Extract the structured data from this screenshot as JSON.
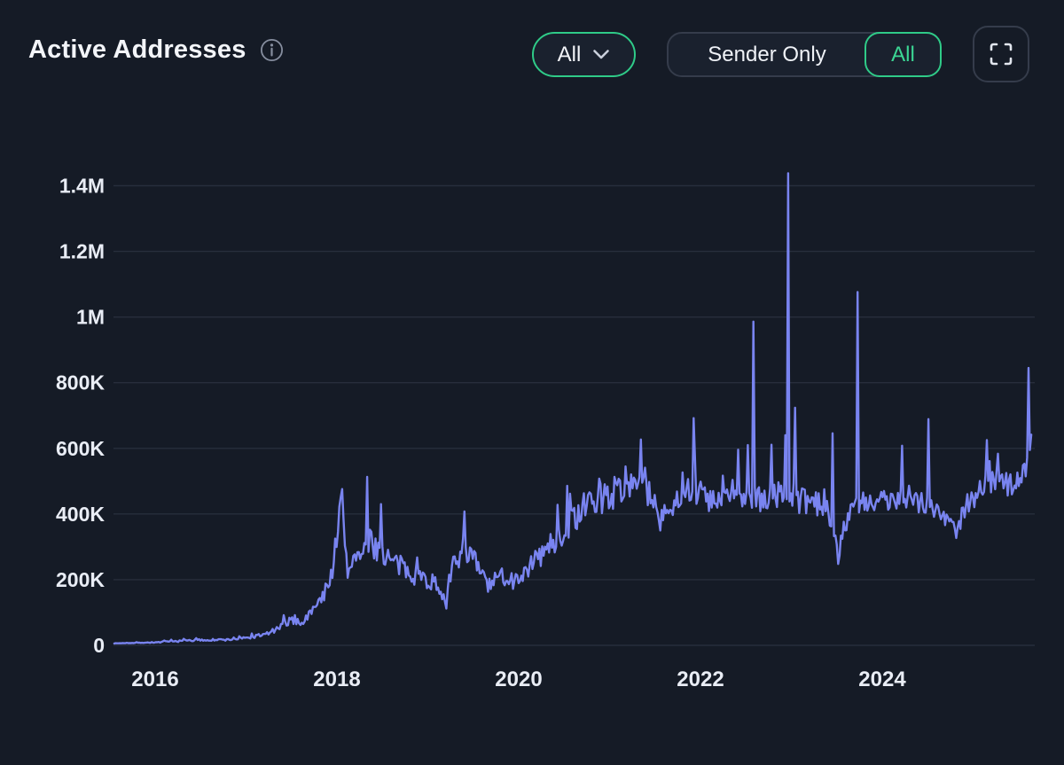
{
  "header": {
    "title": "Active Addresses",
    "range_dropdown": {
      "selected": "All"
    },
    "mode_toggle": {
      "option_sender": "Sender Only",
      "option_all": "All",
      "selected": "All"
    },
    "icons": {
      "info": "circled-i",
      "dropdown_chevron": "chevron-down",
      "fullscreen": "corner-brackets"
    }
  },
  "colors": {
    "background": "#151B26",
    "accent_green": "#2FCB88",
    "accent_green_text": "#3BD694",
    "line": "#7984F0",
    "text_primary": "#F3F5F9",
    "axis_text": "#E9EDF5",
    "grid": "rgba(163,178,212,0.13)",
    "control_border": "#353C4B"
  },
  "chart_data": {
    "type": "line",
    "title": "Active Addresses",
    "series_name": "Active Addresses",
    "xlabel": "",
    "ylabel": "",
    "grid": true,
    "legend": false,
    "line_color": "#7984F0",
    "x_ticks": [
      2016,
      2018,
      2020,
      2022,
      2024
    ],
    "y_tick_labels": [
      "0",
      "200K",
      "400K",
      "600K",
      "800K",
      "1M",
      "1.2M",
      "1.4M"
    ],
    "y_tick_values": [
      0,
      200000,
      400000,
      600000,
      800000,
      1000000,
      1200000,
      1400000
    ],
    "x_range": [
      2015.55,
      2025.64
    ],
    "y_range": [
      0,
      1500000
    ],
    "anchors": [
      [
        2015.55,
        6000
      ],
      [
        2016.0,
        9000
      ],
      [
        2016.2,
        12000
      ],
      [
        2016.5,
        16000
      ],
      [
        2016.8,
        17000
      ],
      [
        2017.0,
        22000
      ],
      [
        2017.2,
        32000
      ],
      [
        2017.35,
        50000
      ],
      [
        2017.5,
        78000
      ],
      [
        2017.62,
        70000
      ],
      [
        2017.75,
        110000
      ],
      [
        2017.85,
        150000
      ],
      [
        2017.95,
        230000
      ],
      [
        2018.05,
        440000
      ],
      [
        2018.12,
        215000
      ],
      [
        2018.2,
        290000
      ],
      [
        2018.28,
        260000
      ],
      [
        2018.35,
        310000
      ],
      [
        2018.45,
        300000
      ],
      [
        2018.6,
        255000
      ],
      [
        2018.78,
        225000
      ],
      [
        2018.95,
        205000
      ],
      [
        2019.1,
        185000
      ],
      [
        2019.2,
        150000
      ],
      [
        2019.3,
        260000
      ],
      [
        2019.42,
        300000
      ],
      [
        2019.55,
        235000
      ],
      [
        2019.69,
        175000
      ],
      [
        2019.8,
        215000
      ],
      [
        2019.95,
        195000
      ],
      [
        2020.1,
        235000
      ],
      [
        2020.3,
        290000
      ],
      [
        2020.45,
        330000
      ],
      [
        2020.6,
        385000
      ],
      [
        2020.75,
        425000
      ],
      [
        2020.9,
        450000
      ],
      [
        2021.05,
        465000
      ],
      [
        2021.2,
        490000
      ],
      [
        2021.35,
        520000
      ],
      [
        2021.5,
        420000
      ],
      [
        2021.62,
        400000
      ],
      [
        2021.78,
        460000
      ],
      [
        2021.92,
        480000
      ],
      [
        2022.05,
        445000
      ],
      [
        2022.2,
        430000
      ],
      [
        2022.35,
        465000
      ],
      [
        2022.5,
        450000
      ],
      [
        2022.65,
        440000
      ],
      [
        2022.8,
        455000
      ],
      [
        2022.95,
        470000
      ],
      [
        2023.1,
        440000
      ],
      [
        2023.25,
        430000
      ],
      [
        2023.35,
        420000
      ],
      [
        2023.45,
        390000
      ],
      [
        2023.52,
        290000
      ],
      [
        2023.62,
        400000
      ],
      [
        2023.75,
        430000
      ],
      [
        2023.9,
        425000
      ],
      [
        2024.05,
        435000
      ],
      [
        2024.2,
        465000
      ],
      [
        2024.35,
        450000
      ],
      [
        2024.5,
        430000
      ],
      [
        2024.65,
        400000
      ],
      [
        2024.81,
        355000
      ],
      [
        2024.95,
        440000
      ],
      [
        2025.1,
        480000
      ],
      [
        2025.25,
        505000
      ],
      [
        2025.4,
        485000
      ],
      [
        2025.53,
        515000
      ],
      [
        2025.6,
        560000
      ],
      [
        2025.64,
        640000
      ]
    ],
    "spikes": [
      [
        2017.53,
        92000
      ],
      [
        2018.05,
        476000
      ],
      [
        2018.34,
        513000
      ],
      [
        2018.48,
        430000
      ],
      [
        2019.4,
        408000
      ],
      [
        2020.57,
        462000
      ],
      [
        2020.88,
        508000
      ],
      [
        2021.17,
        545000
      ],
      [
        2021.35,
        627000
      ],
      [
        2021.92,
        692000
      ],
      [
        2022.42,
        596000
      ],
      [
        2022.52,
        610000
      ],
      [
        2022.58,
        986000
      ],
      [
        2022.78,
        611000
      ],
      [
        2022.93,
        640000
      ],
      [
        2022.96,
        1438000
      ],
      [
        2023.04,
        724000
      ],
      [
        2023.46,
        646000
      ],
      [
        2023.73,
        1076000
      ],
      [
        2024.22,
        608000
      ],
      [
        2024.51,
        689000
      ],
      [
        2025.15,
        625000
      ],
      [
        2025.61,
        845000
      ]
    ],
    "dips": [
      [
        2019.2,
        112000
      ],
      [
        2021.56,
        350000
      ],
      [
        2023.51,
        248000
      ],
      [
        2024.81,
        327000
      ]
    ],
    "noise": {
      "seed": 7,
      "samples": 660,
      "burst_threshold": 0.963,
      "burst_gain": 1.9,
      "floor": 4000,
      "amp_anchors": [
        [
          2015.55,
          0.05
        ],
        [
          2016.1,
          0.18
        ],
        [
          2017.0,
          0.17
        ],
        [
          2017.6,
          0.15
        ],
        [
          2018.0,
          0.11
        ],
        [
          2018.4,
          0.13
        ],
        [
          2019.6,
          0.14
        ],
        [
          2020.3,
          0.12
        ],
        [
          2021.2,
          0.09
        ],
        [
          2022.0,
          0.085
        ],
        [
          2023.5,
          0.085
        ],
        [
          2024.5,
          0.08
        ],
        [
          2025.3,
          0.07
        ],
        [
          2025.64,
          0.05
        ]
      ]
    }
  }
}
